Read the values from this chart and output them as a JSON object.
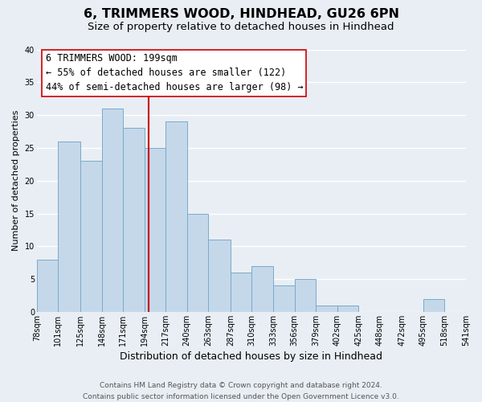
{
  "title": "6, TRIMMERS WOOD, HINDHEAD, GU26 6PN",
  "subtitle": "Size of property relative to detached houses in Hindhead",
  "xlabel": "Distribution of detached houses by size in Hindhead",
  "ylabel": "Number of detached properties",
  "bins": [
    78,
    101,
    125,
    148,
    171,
    194,
    217,
    240,
    263,
    287,
    310,
    333,
    356,
    379,
    402,
    425,
    448,
    472,
    495,
    518,
    541
  ],
  "counts": [
    8,
    26,
    23,
    31,
    28,
    25,
    29,
    15,
    11,
    6,
    7,
    4,
    5,
    1,
    1,
    0,
    0,
    0,
    2,
    0
  ],
  "bar_facecolor": "#c5d8ea",
  "bar_edgecolor": "#7aaac8",
  "bar_linewidth": 0.7,
  "vline_x": 199,
  "vline_color": "#cc0000",
  "vline_linewidth": 1.5,
  "annotation_text": "6 TRIMMERS WOOD: 199sqm\n← 55% of detached houses are smaller (122)\n44% of semi-detached houses are larger (98) →",
  "annotation_box_edgecolor": "#cc0000",
  "annotation_box_facecolor": "white",
  "ylim": [
    0,
    40
  ],
  "yticks": [
    0,
    5,
    10,
    15,
    20,
    25,
    30,
    35,
    40
  ],
  "xtick_labels": [
    "78sqm",
    "101sqm",
    "125sqm",
    "148sqm",
    "171sqm",
    "194sqm",
    "217sqm",
    "240sqm",
    "263sqm",
    "287sqm",
    "310sqm",
    "333sqm",
    "356sqm",
    "379sqm",
    "402sqm",
    "425sqm",
    "448sqm",
    "472sqm",
    "495sqm",
    "518sqm",
    "541sqm"
  ],
  "footer_line1": "Contains HM Land Registry data © Crown copyright and database right 2024.",
  "footer_line2": "Contains public sector information licensed under the Open Government Licence v3.0.",
  "background_color": "#e8eef4",
  "plot_bg_color": "#e8eef4",
  "grid_color": "white",
  "title_fontsize": 11.5,
  "subtitle_fontsize": 9.5,
  "xlabel_fontsize": 9,
  "ylabel_fontsize": 8,
  "tick_fontsize": 7,
  "annotation_fontsize": 8.5,
  "footer_fontsize": 6.5
}
